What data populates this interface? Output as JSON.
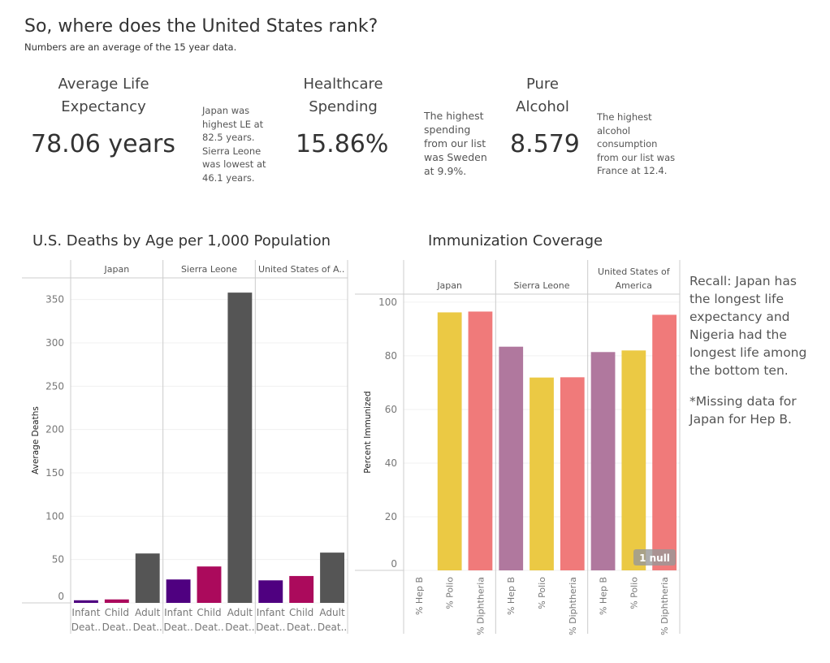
{
  "header": {
    "title": "So, where does the United States rank?",
    "subtitle": "Numbers are an average of the 15 year data."
  },
  "kpis": [
    {
      "label1": "Average Life",
      "label2": "Expectancy",
      "value": "78.06 years",
      "note": [
        "Japan was",
        "highest LE at",
        "82.5 years.",
        "Sierra Leone",
        "was lowest at",
        "46.1 years."
      ]
    },
    {
      "label1": "Healthcare",
      "label2": "Spending",
      "value": "15.86%",
      "note": [
        "The highest",
        "spending",
        "from our list",
        "was Sweden",
        "at 9.9%."
      ]
    },
    {
      "label1": "Pure",
      "label2": "Alcohol",
      "value": "8.579",
      "note": [
        "The highest",
        "alcohol",
        "consumption",
        "from our list was",
        "France at 12.4."
      ]
    }
  ],
  "side_note": {
    "p1": "Recall: Japan has the longest life expectancy and Nigeria had the longest life among the bottom ten.",
    "p2": "*Missing data for Japan for Hep B."
  },
  "chart_data": [
    {
      "type": "bar",
      "title": "U.S. Deaths by Age per 1,000 Population",
      "ylabel": "Average Deaths",
      "ylim": [
        0,
        375
      ],
      "yticks": [
        0,
        50,
        100,
        150,
        200,
        250,
        300,
        350
      ],
      "grid": true,
      "panels": [
        "Japan",
        "Sierra Leone",
        "United States of A.."
      ],
      "categories": [
        [
          "Infant",
          "Deat.."
        ],
        [
          "Child",
          "Deat.."
        ],
        [
          "Adult",
          "Deat.."
        ]
      ],
      "colors": [
        "#4f0080",
        "#ab0a5c",
        "#555555"
      ],
      "values": [
        [
          3,
          4,
          57
        ],
        [
          27,
          42,
          358
        ],
        [
          26,
          31,
          58
        ]
      ]
    },
    {
      "type": "bar",
      "title": "Immunization Coverage",
      "ylabel": "Percent Immunized",
      "ylim": [
        0,
        103
      ],
      "yticks": [
        0,
        20,
        40,
        60,
        80,
        100
      ],
      "grid": true,
      "panels": [
        [
          "Japan"
        ],
        [
          "Sierra Leone"
        ],
        [
          "United States of",
          "America"
        ]
      ],
      "categories": [
        "% Hep B",
        "% Polio",
        "% Diphtheria"
      ],
      "colors": [
        "#b0789e",
        "#ebc944",
        "#f07a7a"
      ],
      "values": [
        [
          null,
          96.2,
          96.5
        ],
        [
          83.4,
          71.9,
          72
        ],
        [
          81.4,
          82,
          95.3
        ]
      ],
      "null_badge": "1 null"
    }
  ]
}
